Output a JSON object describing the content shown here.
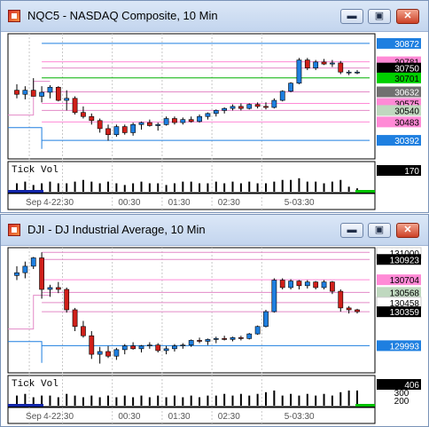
{
  "windows": [
    {
      "id": "top",
      "title": "NQC5 - NASDAQ Composite, 10 Min",
      "buttons": {
        "minimize": "▬",
        "restore": "▣",
        "close": "✕"
      },
      "price_axis_tags": [
        {
          "text": "30872",
          "bg": "#1e7fe0",
          "fg": "#ffffff",
          "y": 30872
        },
        {
          "text": "30781",
          "bg": "#ff8ad6",
          "fg": "#000000",
          "y": 30781
        },
        {
          "text": "30750",
          "bg": "#000000",
          "fg": "#ffffff",
          "y": 30750
        },
        {
          "text": "30701",
          "bg": "#00d000",
          "fg": "#000000",
          "y": 30701
        },
        {
          "text": "30632",
          "bg": "#707070",
          "fg": "#ffffff",
          "y": 30632
        },
        {
          "text": "30575",
          "bg": "#ff8ad6",
          "fg": "#000000",
          "y": 30575
        },
        {
          "text": "30540",
          "bg": "#bfd8bf",
          "fg": "#000000",
          "y": 30540
        },
        {
          "text": "30483",
          "bg": "#ff8ad6",
          "fg": "#000000",
          "y": 30483
        },
        {
          "text": "30392",
          "bg": "#1e7fe0",
          "fg": "#ffffff",
          "y": 30392
        }
      ],
      "volume_label": "Tick Vol",
      "volume_value": "170",
      "time_labels": [
        "Sep",
        "4-22:30",
        "00:30",
        "01:30",
        "02:30",
        "5-03:30"
      ],
      "chart_data": {
        "type": "candlestick",
        "ylim": [
          30300,
          30920
        ],
        "ohlc": [
          [
            30640,
            30670,
            30600,
            30620
          ],
          [
            30620,
            30660,
            30595,
            30640
          ],
          [
            30640,
            30700,
            30610,
            30610
          ],
          [
            30610,
            30660,
            30580,
            30630
          ],
          [
            30630,
            30665,
            30600,
            30655
          ],
          [
            30655,
            30660,
            30585,
            30590
          ],
          [
            30590,
            30640,
            30540,
            30600
          ],
          [
            30600,
            30610,
            30520,
            30530
          ],
          [
            30530,
            30560,
            30500,
            30510
          ],
          [
            30510,
            30525,
            30470,
            30490
          ],
          [
            30490,
            30500,
            30430,
            30450
          ],
          [
            30450,
            30470,
            30390,
            30420
          ],
          [
            30420,
            30470,
            30410,
            30460
          ],
          [
            30460,
            30470,
            30420,
            30430
          ],
          [
            30430,
            30480,
            30415,
            30470
          ],
          [
            30470,
            30485,
            30445,
            30480
          ],
          [
            30480,
            30495,
            30460,
            30465
          ],
          [
            30465,
            30480,
            30440,
            30470
          ],
          [
            30470,
            30510,
            30465,
            30500
          ],
          [
            30500,
            30510,
            30470,
            30480
          ],
          [
            30480,
            30505,
            30470,
            30495
          ],
          [
            30495,
            30510,
            30480,
            30485
          ],
          [
            30485,
            30520,
            30480,
            30510
          ],
          [
            30510,
            30530,
            30495,
            30525
          ],
          [
            30525,
            30545,
            30510,
            30540
          ],
          [
            30540,
            30555,
            30525,
            30550
          ],
          [
            30550,
            30570,
            30540,
            30560
          ],
          [
            30560,
            30575,
            30540,
            30550
          ],
          [
            30550,
            30575,
            30545,
            30570
          ],
          [
            30570,
            30580,
            30550,
            30560
          ],
          [
            30560,
            30580,
            30545,
            30555
          ],
          [
            30555,
            30600,
            30550,
            30590
          ],
          [
            30590,
            30640,
            30585,
            30635
          ],
          [
            30635,
            30680,
            30630,
            30675
          ],
          [
            30675,
            30800,
            30670,
            30790
          ],
          [
            30790,
            30800,
            30740,
            30750
          ],
          [
            30750,
            30790,
            30740,
            30780
          ],
          [
            30780,
            30795,
            30765,
            30770
          ],
          [
            30770,
            30790,
            30755,
            30775
          ],
          [
            30775,
            30785,
            30720,
            30730
          ],
          [
            30730,
            30740,
            30715,
            30730
          ],
          [
            30730,
            30740,
            30720,
            30730
          ]
        ],
        "volume": [
          5,
          6,
          4,
          5,
          6,
          5,
          5,
          6,
          7,
          6,
          5,
          6,
          5,
          4,
          5,
          6,
          5,
          5,
          4,
          5,
          6,
          6,
          5,
          5,
          6,
          5,
          6,
          5,
          6,
          5,
          5,
          6,
          7,
          7,
          8,
          6,
          6,
          5,
          6,
          7,
          3,
          2
        ],
        "vol_max": 10
      }
    },
    {
      "id": "bottom",
      "title": "DJI - DJ Industrial Average, 10 Min",
      "buttons": {
        "minimize": "▬",
        "restore": "▣",
        "close": "✕"
      },
      "price_axis_tags": [
        {
          "text": "131000",
          "bg": "#ffffff",
          "fg": "#000000",
          "y": 131000
        },
        {
          "text": "130923",
          "bg": "#000000",
          "fg": "#ffffff",
          "y": 130923
        },
        {
          "text": "130704",
          "bg": "#ff8ad6",
          "fg": "#000000",
          "y": 130704
        },
        {
          "text": "130568",
          "bg": "#bfd8bf",
          "fg": "#000000",
          "y": 130568
        },
        {
          "text": "130458",
          "bg": "#ffffff",
          "fg": "#000000",
          "y": 130458
        },
        {
          "text": "130359",
          "bg": "#000000",
          "fg": "#ffffff",
          "y": 130359
        },
        {
          "text": "129993",
          "bg": "#1e7fe0",
          "fg": "#ffffff",
          "y": 129993
        }
      ],
      "volume_label": "Tick Vol",
      "volume_value": "406",
      "volume_ticks": [
        "300",
        "200"
      ],
      "time_labels": [
        "Sep",
        "4-22:30",
        "00:30",
        "01:30",
        "02:30",
        "5-03:30"
      ],
      "chart_data": {
        "type": "candlestick",
        "ylim": [
          129700,
          131050
        ],
        "ohlc": [
          [
            130750,
            130850,
            130700,
            130780
          ],
          [
            130780,
            130900,
            130720,
            130850
          ],
          [
            130850,
            130950,
            130820,
            130940
          ],
          [
            130940,
            131000,
            130500,
            130600
          ],
          [
            130600,
            130650,
            130520,
            130620
          ],
          [
            130620,
            130680,
            130560,
            130600
          ],
          [
            130600,
            130620,
            130350,
            130380
          ],
          [
            130380,
            130400,
            130150,
            130200
          ],
          [
            130200,
            130260,
            130080,
            130100
          ],
          [
            130100,
            130150,
            129850,
            129900
          ],
          [
            129900,
            129980,
            129800,
            129930
          ],
          [
            129930,
            129990,
            129860,
            129880
          ],
          [
            129880,
            129970,
            129840,
            129950
          ],
          [
            129950,
            130010,
            129900,
            129990
          ],
          [
            129990,
            130030,
            129950,
            129960
          ],
          [
            129960,
            130000,
            129920,
            129990
          ],
          [
            129990,
            130030,
            129960,
            130000
          ],
          [
            130000,
            130020,
            129920,
            129940
          ],
          [
            129940,
            129990,
            129900,
            129960
          ],
          [
            129960,
            130010,
            129930,
            129990
          ],
          [
            129990,
            130020,
            129960,
            130000
          ],
          [
            130000,
            130060,
            129980,
            130050
          ],
          [
            130050,
            130080,
            130020,
            130040
          ],
          [
            130040,
            130070,
            130000,
            130060
          ],
          [
            130060,
            130090,
            130020,
            130070
          ],
          [
            130070,
            130100,
            130050,
            130060
          ],
          [
            130060,
            130090,
            130040,
            130080
          ],
          [
            130080,
            130100,
            130050,
            130070
          ],
          [
            130070,
            130130,
            130060,
            130120
          ],
          [
            130120,
            130210,
            130110,
            130200
          ],
          [
            130200,
            130380,
            130190,
            130360
          ],
          [
            130360,
            130720,
            130350,
            130700
          ],
          [
            130700,
            130720,
            130600,
            130620
          ],
          [
            130620,
            130710,
            130600,
            130690
          ],
          [
            130690,
            130700,
            130600,
            130640
          ],
          [
            130640,
            130700,
            130610,
            130680
          ],
          [
            130680,
            130690,
            130600,
            130620
          ],
          [
            130620,
            130700,
            130600,
            130680
          ],
          [
            130680,
            130690,
            130550,
            130580
          ],
          [
            130580,
            130600,
            130360,
            130400
          ],
          [
            130400,
            130420,
            130340,
            130380
          ],
          [
            130380,
            130390,
            130340,
            130360
          ]
        ],
        "volume": [
          6,
          7,
          5,
          6,
          6,
          5,
          7,
          6,
          5,
          6,
          5,
          6,
          5,
          6,
          5,
          6,
          5,
          6,
          5,
          6,
          5,
          6,
          5,
          6,
          6,
          7,
          6,
          7,
          6,
          7,
          8,
          9,
          6,
          7,
          6,
          7,
          6,
          7,
          6,
          8,
          9,
          9
        ],
        "vol_max": 10
      }
    }
  ]
}
